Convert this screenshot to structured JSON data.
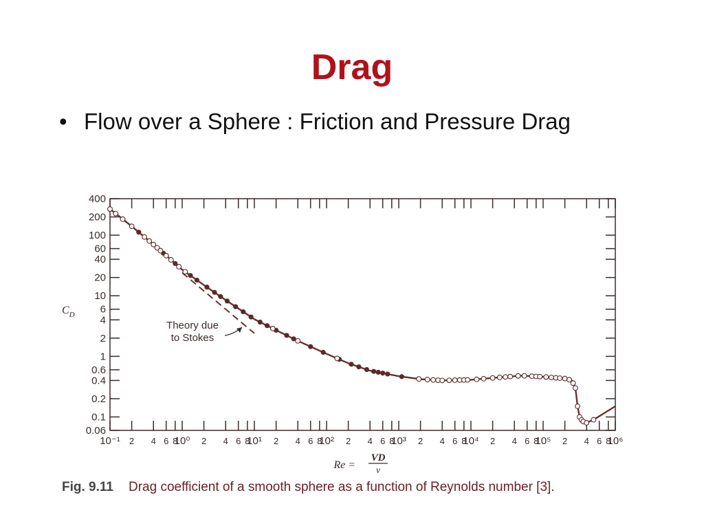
{
  "slide": {
    "title": "Drag",
    "bullet": "Flow over a Sphere : Friction and Pressure Drag"
  },
  "caption": {
    "figure_label": "Fig. 9.11",
    "text": "Drag coefficient of a smooth sphere as a function of Reynolds number [3]."
  },
  "colors": {
    "title": "#b0121a",
    "curve": "#6b2e2e",
    "points": "#5a2a2a",
    "caption": "#6b2024"
  },
  "chart_data": {
    "type": "line",
    "xscale": "log",
    "yscale": "log",
    "xlim": [
      0.1,
      1000000
    ],
    "ylim": [
      0.06,
      400
    ],
    "ylabel": "C_D",
    "xlabel": "Re = VD/ν",
    "y_ticks": [
      "400",
      "200",
      "100",
      "60",
      "40",
      "20",
      "10",
      "6",
      "4",
      "2",
      "1",
      "0.6",
      "0.4",
      "0.2",
      "0.1",
      "0.06"
    ],
    "y_tick_values": [
      400,
      200,
      100,
      60,
      40,
      20,
      10,
      6,
      4,
      2,
      1,
      0.6,
      0.4,
      0.2,
      0.1,
      0.06
    ],
    "x_tick_values": [
      0.1,
      0.2,
      0.4,
      0.6,
      0.8,
      1,
      2,
      4,
      6,
      8,
      10,
      20,
      40,
      60,
      80,
      100,
      200,
      400,
      600,
      800,
      1000,
      2000,
      4000,
      6000,
      8000,
      10000,
      20000,
      40000,
      60000,
      80000,
      100000,
      200000,
      400000,
      600000,
      800000,
      1000000
    ],
    "x_tick_labels": [
      "10⁻¹",
      "2",
      "4",
      "6",
      "8",
      "10⁰",
      "2",
      "4",
      "6",
      "8",
      "10¹",
      "2",
      "4",
      "6",
      "8",
      "10²",
      "2",
      "4",
      "6",
      "8",
      "10³",
      "2",
      "4",
      "6",
      "8",
      "10⁴",
      "2",
      "4",
      "6",
      "8",
      "10⁵",
      "2",
      "4",
      "6",
      "8",
      "10⁶"
    ],
    "series": [
      {
        "kind": "measured-curve",
        "x": [
          0.1,
          0.2,
          0.4,
          1,
          2,
          4,
          10,
          20,
          40,
          100,
          200,
          400,
          1000,
          2000,
          4000,
          10000,
          20000,
          50000,
          100000,
          200000,
          250000,
          280000,
          300000,
          320000,
          350000,
          400000,
          500000,
          1000000
        ],
        "y": [
          270,
          140,
          70,
          27,
          15,
          8.5,
          4.1,
          2.7,
          1.8,
          1.1,
          0.77,
          0.58,
          0.47,
          0.42,
          0.4,
          0.41,
          0.44,
          0.48,
          0.46,
          0.43,
          0.4,
          0.3,
          0.15,
          0.1,
          0.085,
          0.08,
          0.09,
          0.15
        ]
      },
      {
        "name": "Theory due to Stokes",
        "kind": "theory-dashed",
        "x": [
          1,
          10
        ],
        "y": [
          24,
          2.4
        ]
      }
    ],
    "markers": {
      "filled_x": [
        0.25,
        0.55,
        0.8,
        1.3,
        1.6,
        2.2,
        2.8,
        3.4,
        4.2,
        5.5,
        7,
        9,
        12,
        15,
        20,
        28,
        35,
        60,
        90,
        150,
        220,
        280,
        360,
        450,
        520,
        600,
        700,
        1100
      ],
      "open_x": [
        0.1,
        0.12,
        0.15,
        0.2,
        0.3,
        0.35,
        0.4,
        0.45,
        0.5,
        0.6,
        0.7,
        0.9,
        1.1,
        18,
        40,
        140,
        1900,
        2500,
        3000,
        3500,
        4000,
        5000,
        6000,
        7000,
        8000,
        9000,
        12000,
        15000,
        20000,
        25000,
        30000,
        35000,
        45000,
        55000,
        70000,
        80000,
        90000,
        110000,
        130000,
        150000,
        170000,
        200000,
        230000,
        260000,
        280000,
        300000,
        320000,
        340000,
        360000,
        400000,
        500000
      ]
    },
    "annotation": "Theory due\nto Stokes",
    "grid": false
  }
}
